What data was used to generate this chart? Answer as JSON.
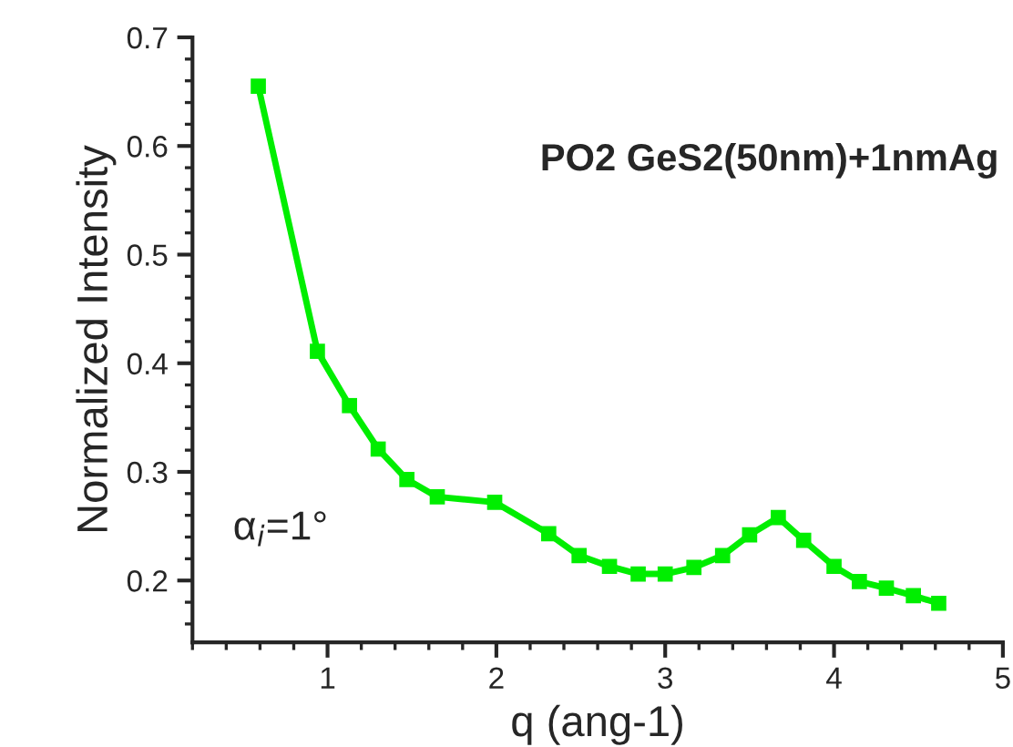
{
  "chart_data": {
    "type": "line",
    "xlabel": "q (ang-1)",
    "ylabel": "Normalized Intensity",
    "annotations": [
      "PO2 GeS2(50nm)+1nmAg",
      "α$_{i}$=1°"
    ],
    "x": [
      0.59,
      0.94,
      1.13,
      1.3,
      1.47,
      1.65,
      1.99,
      2.31,
      2.49,
      2.67,
      2.84,
      3.0,
      3.17,
      3.34,
      3.5,
      3.67,
      3.82,
      4.0,
      4.15,
      4.31,
      4.47,
      4.62
    ],
    "series": [
      {
        "color": "#00ee00",
        "values": [
          0.655,
          0.411,
          0.361,
          0.321,
          0.293,
          0.277,
          0.272,
          0.243,
          0.223,
          0.213,
          0.206,
          0.206,
          0.212,
          0.223,
          0.242,
          0.258,
          0.237,
          0.213,
          0.199,
          0.193,
          0.186,
          0.179
        ]
      }
    ],
    "xlim": [
      0.2,
      5
    ],
    "ylim": [
      0.143,
      0.7
    ],
    "xticks": [
      1,
      2,
      3,
      4,
      5
    ],
    "yticks": [
      0.2,
      0.3,
      0.4,
      0.5,
      0.6,
      0.7
    ],
    "marker": "square",
    "line_style": "solid",
    "grid": false,
    "legend": false
  }
}
